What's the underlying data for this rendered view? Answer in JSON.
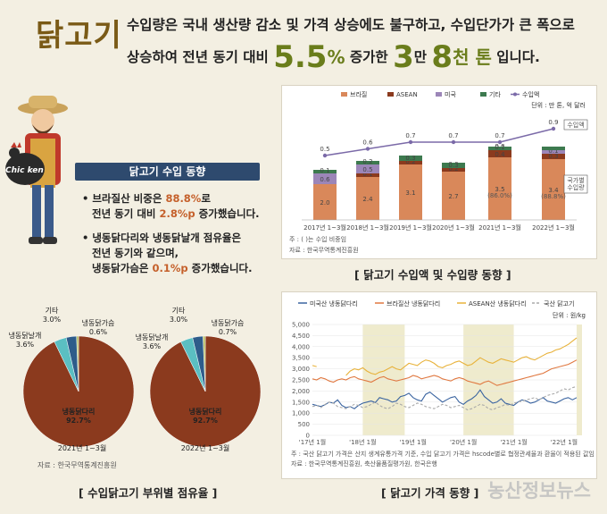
{
  "header": {
    "title": "닭고기",
    "line1": "수입량은 국내 생산량 감소 및 가격 상승에도 불구하고, 수입단가가 큰 폭으로",
    "line2_pre": "상승하여 전년 동기 대비",
    "line2_pct": "5.5",
    "line2_pct_unit": "%",
    "line2_mid": "증가한",
    "line2_n1": "3",
    "line2_u1": "만",
    "line2_n2": "8",
    "line2_u2": "천 톤",
    "line2_post": "입니다."
  },
  "illustration": {
    "logo_text": "Chic ken"
  },
  "trend_box": {
    "title": "닭고기 수입 동향",
    "b1_a": "• 브라질산 비중은",
    "b1_hl": "88.8%",
    "b1_b": "로",
    "b1_line2_a": "전년 동기 대비",
    "b1_hl2": "2.8%p",
    "b1_line2_b": "증가했습니다.",
    "b2_line1": "• 냉동닭다리와 냉동닭날개 점유율은",
    "b2_line2": "전년 동기와 같으며,",
    "b2_line3_a": "냉동닭가슴은",
    "b2_hl": "0.1%p",
    "b2_line3_b": "증가했습니다."
  },
  "colors": {
    "brazil": "#d9885a",
    "asean": "#8b3a1e",
    "usa": "#9c86b8",
    "other": "#3d7a4f",
    "import_value": "#7b6aa8",
    "us_leg": "#3a64a0",
    "brazil_leg": "#e07840",
    "asean_leg": "#e8b23a",
    "domestic": "#aaaaaa",
    "pie_main": "#8b3a1e",
    "pie_wing": "#5bbfc2",
    "pie_breast": "#b9bf63",
    "pie_other": "#2e5c8a"
  },
  "chart_data": [
    {
      "type": "bar",
      "stacked": true,
      "legend": [
        "브라질",
        "ASEAN",
        "미국",
        "기타",
        "수입액"
      ],
      "unit": "단위 : 만 톤, 억 달러",
      "categories": [
        "2017년 1~3월",
        "2018년 1~3월",
        "2019년 1~3월",
        "2020년 1~3월",
        "2021년 1~3월",
        "2022년 1~3월"
      ],
      "series": [
        {
          "name": "브라질",
          "values": [
            2.0,
            2.4,
            3.1,
            2.7,
            3.5,
            3.4
          ]
        },
        {
          "name": "ASEAN",
          "values": [
            0.0,
            0.1,
            0.2,
            0.2,
            0.4,
            0.3
          ]
        },
        {
          "name": "미국",
          "values": [
            0.6,
            0.5,
            0.0,
            0.0,
            0.0,
            0.1
          ]
        },
        {
          "name": "기타",
          "values": [
            0.1,
            0.2,
            0.3,
            0.3,
            0.1,
            0.1
          ]
        }
      ],
      "line": {
        "name": "수입액",
        "values": [
          0.5,
          0.6,
          0.7,
          0.7,
          0.7,
          0.9
        ]
      },
      "value_labels": {
        "brazil": [
          "2.0",
          "2.4",
          "3.1",
          "2.7",
          "3.5",
          "3.4"
        ],
        "asean": [
          "",
          "0.1",
          "0.2",
          "0.2",
          "0.4",
          "0.3"
        ],
        "usa": [
          "0.6",
          "0.5",
          "",
          "0.0",
          "0.0",
          "0.1"
        ],
        "other": [
          "0.1",
          "0.2",
          "0.3",
          "0.3",
          "0.1",
          ""
        ],
        "line": [
          "0.5",
          "0.6",
          "0.7",
          "0.7",
          "0.7",
          "0.9"
        ]
      },
      "share_labels": [
        "",
        "",
        "",
        "",
        "(86.0%)",
        "(88.8%)"
      ],
      "tag_top": "수입액",
      "tag_bottom": "국가별\n수입량",
      "note": "주 : (  )는 수입 비중임",
      "source": "자료 : 한국무역통계진흥원",
      "caption": "[ 닭고기 수입액 및 수입량 동향 ]"
    },
    {
      "type": "pie",
      "charts": [
        {
          "label": "2021년 1~3월",
          "slices": [
            {
              "name": "냉동닭다리",
              "value": 92.7,
              "label": "냉동닭다리\n92.7%"
            },
            {
              "name": "냉동닭날개",
              "value": 3.6,
              "label": "냉동닭날개\n3.6%"
            },
            {
              "name": "냉동닭가슴",
              "value": 0.6,
              "label": "냉동닭가슴\n0.6%"
            },
            {
              "name": "기타",
              "value": 3.0,
              "label": "기타\n3.0%"
            }
          ]
        },
        {
          "label": "2022년 1~3월",
          "slices": [
            {
              "name": "냉동닭다리",
              "value": 92.7,
              "label": "냉동닭다리\n92.7%"
            },
            {
              "name": "냉동닭날개",
              "value": 3.6,
              "label": "냉동닭날개\n3.6%"
            },
            {
              "name": "냉동닭가슴",
              "value": 0.7,
              "label": "냉동닭가슴\n0.7%"
            },
            {
              "name": "기타",
              "value": 3.0,
              "label": "기타\n3.0%"
            }
          ]
        }
      ],
      "source": "자료 : 한국무역통계진흥원",
      "caption": "[ 수입닭고기 부위별 점유율 ]"
    },
    {
      "type": "line",
      "legend": [
        "미국산 냉동닭다리",
        "브라질산 냉동닭다리",
        "ASEAN산 냉동닭다리",
        "국산 닭고기"
      ],
      "unit": "단위 : 원/kg",
      "ylim": [
        0,
        5000
      ],
      "yticks": [
        "0",
        "500",
        "1,000",
        "1,500",
        "2,000",
        "2,500",
        "3,000",
        "3,500",
        "4,000",
        "4,500",
        "5,000"
      ],
      "xticks": [
        "'17년 1월",
        "'18년 1월",
        "'19년 1월",
        "'20년 1월",
        "'21년 1월",
        "'22년 1월"
      ],
      "months": 64,
      "series": [
        {
          "name": "미국산 냉동닭다리",
          "values": [
            1400,
            1350,
            1300,
            1380,
            1500,
            1450,
            1600,
            1350,
            1250,
            1300,
            1200,
            1350,
            1450,
            1500,
            1550,
            1480,
            1700,
            1650,
            1600,
            1500,
            1550,
            1750,
            1800,
            1900,
            1700,
            1600,
            1550,
            1850,
            1950,
            1800,
            1650,
            1500,
            1600,
            1700,
            1750,
            1500,
            1400,
            1550,
            1650,
            1800,
            2050,
            1750,
            1600,
            1450,
            1500,
            1650,
            1450,
            1400,
            1350,
            1500,
            1600,
            1550,
            1450,
            1500,
            1600,
            1700,
            1550,
            1500,
            1450,
            1550,
            1650,
            1700,
            1600,
            1700
          ]
        },
        {
          "name": "브라질산 냉동닭다리",
          "values": [
            2550,
            2500,
            2600,
            2550,
            2450,
            2400,
            2500,
            2550,
            2500,
            2600,
            2650,
            2550,
            2500,
            2450,
            2400,
            2500,
            2600,
            2650,
            2550,
            2500,
            2450,
            2500,
            2550,
            2600,
            2700,
            2650,
            2550,
            2600,
            2650,
            2700,
            2650,
            2550,
            2500,
            2450,
            2550,
            2600,
            2550,
            2450,
            2400,
            2350,
            2300,
            2400,
            2450,
            2350,
            2250,
            2300,
            2350,
            2400,
            2450,
            2500,
            2550,
            2600,
            2650,
            2700,
            2750,
            2800,
            2900,
            3000,
            3050,
            3100,
            3150,
            3200,
            3300,
            3400
          ]
        },
        {
          "name": "ASEAN산 냉동닭다리",
          "values": [
            3150,
            3100,
            null,
            null,
            null,
            null,
            null,
            null,
            2700,
            2900,
            3000,
            2950,
            3050,
            2900,
            2800,
            2750,
            2850,
            2900,
            3000,
            3100,
            3000,
            2950,
            3100,
            3250,
            3200,
            3150,
            3300,
            3400,
            3350,
            3250,
            3100,
            3050,
            3150,
            3200,
            3300,
            3350,
            3250,
            3150,
            3200,
            3350,
            3500,
            3400,
            3300,
            3250,
            3350,
            3450,
            3400,
            3350,
            3300,
            3400,
            3500,
            3550,
            3450,
            3400,
            3500,
            3600,
            3700,
            3750,
            3850,
            3900,
            4000,
            4100,
            4250,
            4400
          ]
        },
        {
          "name": "국산 닭고기",
          "values": [
            1300,
            1350,
            1250,
            1400,
            1500,
            1450,
            1300,
            1250,
            1200,
            1300,
            1400,
            1350,
            1250,
            1300,
            1400,
            1500,
            1350,
            1250,
            1200,
            1300,
            1450,
            1400,
            1300,
            1250,
            1350,
            1450,
            1400,
            1300,
            1250,
            1200,
            1300,
            1400,
            1350,
            1250,
            1300,
            1350,
            1250,
            1150,
            1200,
            1300,
            1400,
            1350,
            1200,
            1150,
            1250,
            1300,
            1400,
            1350,
            1450,
            1500,
            1550,
            1600,
            1650,
            1700,
            1600,
            1700,
            1800,
            1850,
            1900,
            2000,
            2100,
            2050,
            2150,
            2200
          ]
        }
      ],
      "shaded_periods": [
        [
          12,
          22
        ],
        [
          36,
          48
        ],
        [
          63,
          64
        ]
      ],
      "note": "주 : 국산 닭고기 가격은 산지 생계유통가격 기준, 수입 닭고기 가격은 hscode별로 협정관세율과 환율이 적용된 값임",
      "source": "자료 : 한국무역통계진흥원, 축산물품질평가원, 한국은행",
      "caption": "[ 닭고기 가격 동향 ]"
    }
  ],
  "watermark": "농산정보뉴스"
}
